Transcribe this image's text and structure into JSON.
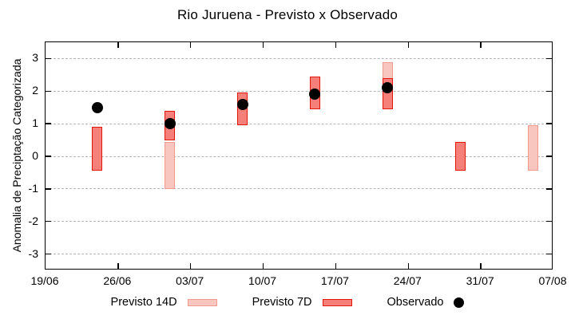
{
  "window_title": "Rio Juruena - Previsto x Observado",
  "chart_data": {
    "type": "bar",
    "subtype": "range-bars-with-scatter-overlay",
    "title": "Rio Juruena - Previsto x Observado",
    "xlabel": "",
    "ylabel": "Anomalia de Preciptação Categorizada",
    "ylim": [
      -3.5,
      3.5
    ],
    "yticks": [
      3,
      2,
      1,
      0,
      -1,
      -2,
      -3
    ],
    "grid": {
      "show": true,
      "color": "#b5b5b5",
      "style": "dashed",
      "axis": "y"
    },
    "legend_position": "bottom",
    "x_axis": {
      "range_days": 49,
      "ticks": [
        {
          "day": 0,
          "label": "19/06"
        },
        {
          "day": 7,
          "label": "26/06"
        },
        {
          "day": 14,
          "label": "03/07"
        },
        {
          "day": 21,
          "label": "10/07"
        },
        {
          "day": 28,
          "label": "17/07"
        },
        {
          "day": 35,
          "label": "24/07"
        },
        {
          "day": 42,
          "label": "31/07"
        },
        {
          "day": 49,
          "label": "07/08"
        }
      ]
    },
    "series": [
      {
        "name": "Previsto 14D",
        "type": "range-bar",
        "fill": "#f8c6bf",
        "stroke": "#ef9a8f",
        "points": [
          {
            "date": "01/07",
            "day": 12,
            "low": -1.0,
            "high": 0.45
          },
          {
            "date": "22/07",
            "day": 33,
            "low": 1.45,
            "high": 2.9
          },
          {
            "date": "05/08",
            "day": 47,
            "low": -0.45,
            "high": 0.95
          }
        ]
      },
      {
        "name": "Previsto 7D",
        "type": "range-bar",
        "fill": "#f5807a",
        "stroke": "#e3140a",
        "points": [
          {
            "date": "24/06",
            "day": 5,
            "low": -0.45,
            "high": 0.9
          },
          {
            "date": "01/07",
            "day": 12,
            "low": 0.5,
            "high": 1.4
          },
          {
            "date": "08/07",
            "day": 19,
            "low": 0.95,
            "high": 1.95
          },
          {
            "date": "15/07",
            "day": 26,
            "low": 1.45,
            "high": 2.45
          },
          {
            "date": "22/07",
            "day": 33,
            "low": 1.45,
            "high": 2.4
          },
          {
            "date": "29/07",
            "day": 40,
            "low": -0.45,
            "high": 0.45
          }
        ]
      },
      {
        "name": "Observado",
        "type": "scatter",
        "color": "#000000",
        "points": [
          {
            "date": "24/06",
            "day": 5,
            "value": 1.5
          },
          {
            "date": "01/07",
            "day": 12,
            "value": 1.0
          },
          {
            "date": "08/07",
            "day": 19,
            "value": 1.6
          },
          {
            "date": "15/07",
            "day": 26,
            "value": 1.9
          },
          {
            "date": "22/07",
            "day": 33,
            "value": 2.1
          }
        ]
      }
    ]
  }
}
